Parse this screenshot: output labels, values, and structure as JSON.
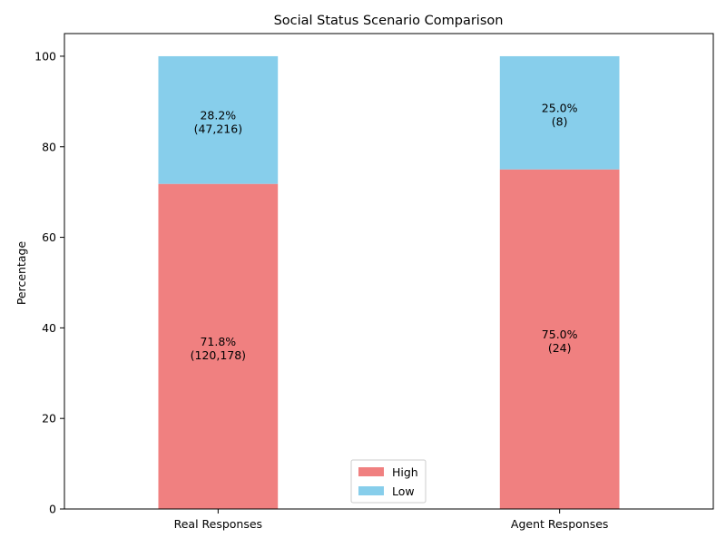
{
  "chart_data": {
    "type": "bar",
    "stacked": true,
    "title": "Social Status Scenario Comparison",
    "xlabel": "",
    "ylabel": "Percentage",
    "ylim": [
      0,
      105
    ],
    "yticks": [
      0,
      20,
      40,
      60,
      80,
      100
    ],
    "categories": [
      "Real Responses",
      "Agent Responses"
    ],
    "series": [
      {
        "name": "High",
        "color": "#f08080",
        "values": [
          71.8,
          75.0
        ],
        "labels": [
          [
            "71.8%",
            "(120,178)"
          ],
          [
            "75.0%",
            "(24)"
          ]
        ]
      },
      {
        "name": "Low",
        "color": "#87ceeb",
        "values": [
          28.2,
          25.0
        ],
        "labels": [
          [
            "28.2%",
            "(47,216)"
          ],
          [
            "25.0%",
            "(8)"
          ]
        ]
      }
    ],
    "grid": false,
    "legend": "bottom-center"
  }
}
